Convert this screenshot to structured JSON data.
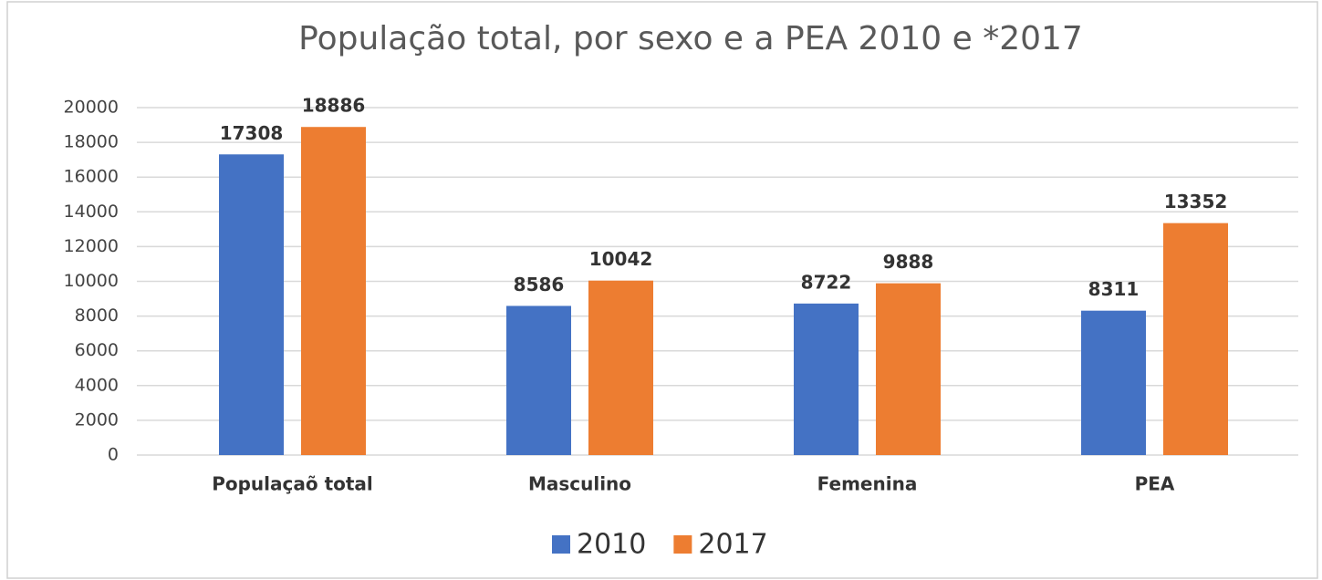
{
  "chart_data": {
    "type": "bar",
    "title": "População total, por sexo e a PEA 2010 e *2017",
    "categories": [
      "Populaçaõ total",
      "Masculino",
      "Femenina",
      "PEA"
    ],
    "series": [
      {
        "name": "2010",
        "color": "#4472c4",
        "values": [
          17308,
          8586,
          8722,
          8311
        ]
      },
      {
        "name": "2017",
        "color": "#ed7d31",
        "values": [
          18886,
          10042,
          9888,
          13352
        ]
      }
    ],
    "ylim": [
      0,
      20000
    ],
    "yticks": [
      0,
      2000,
      4000,
      6000,
      8000,
      10000,
      12000,
      14000,
      16000,
      18000,
      20000
    ],
    "grid": true,
    "legend": "bottom"
  }
}
